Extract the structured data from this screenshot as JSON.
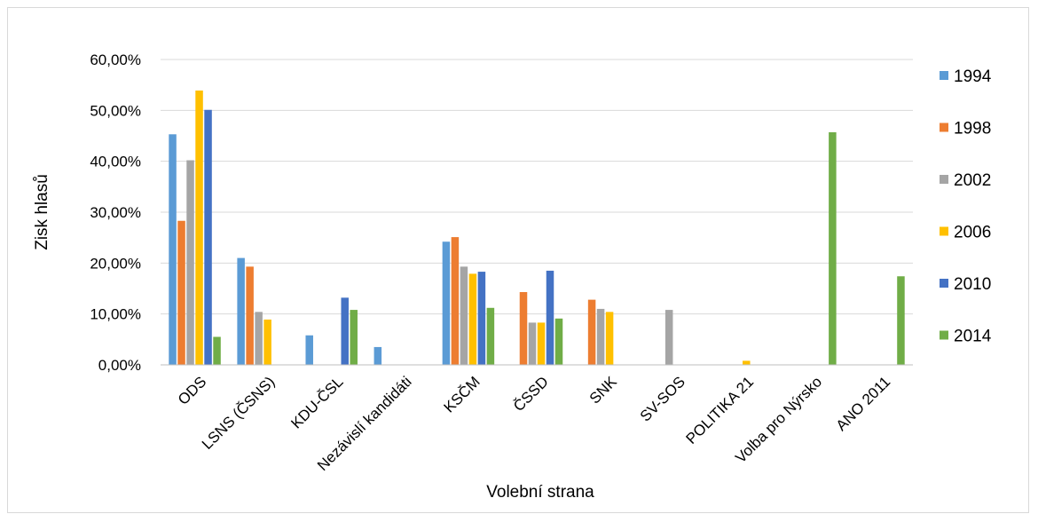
{
  "chart_data": {
    "type": "bar",
    "ylabel": "Zisk hlasů",
    "xlabel": "Volební strana",
    "ylim": [
      0,
      60
    ],
    "yticks": [
      "0,00%",
      "10,00%",
      "20,00%",
      "30,00%",
      "40,00%",
      "50,00%",
      "60,00%"
    ],
    "grid": true,
    "legend_position": "right",
    "categories": [
      "ODS",
      "LSNS (ČSNS)",
      "KDU-ČSL",
      "Nezávislí kandidáti",
      "KSČM",
      "ČSSD",
      "SNK",
      "SV-SOS",
      "POLITIKA 21",
      "Volba pro Nýrsko",
      "ANO 2011"
    ],
    "series": [
      {
        "name": "1994",
        "color": "#5B9BD5",
        "values": [
          45.3,
          21.0,
          5.8,
          3.5,
          24.2,
          0,
          0,
          0,
          0,
          0,
          0
        ]
      },
      {
        "name": "1998",
        "color": "#ED7D31",
        "values": [
          28.3,
          19.3,
          0,
          0,
          25.1,
          14.3,
          12.8,
          0,
          0,
          0,
          0
        ]
      },
      {
        "name": "2002",
        "color": "#A5A5A5",
        "values": [
          40.2,
          10.4,
          0,
          0,
          19.3,
          8.3,
          11.0,
          10.8,
          0,
          0,
          0
        ]
      },
      {
        "name": "2006",
        "color": "#FFC000",
        "values": [
          53.9,
          8.9,
          0,
          0,
          17.9,
          8.3,
          10.4,
          0,
          0.8,
          0,
          0
        ]
      },
      {
        "name": "2010",
        "color": "#4472C4",
        "values": [
          50.1,
          0,
          13.2,
          0,
          18.3,
          18.5,
          0,
          0,
          0,
          0,
          0
        ]
      },
      {
        "name": "2014",
        "color": "#70AD47",
        "values": [
          5.5,
          0,
          10.8,
          0,
          11.2,
          9.1,
          0,
          0,
          0,
          45.7,
          17.4
        ]
      }
    ]
  }
}
